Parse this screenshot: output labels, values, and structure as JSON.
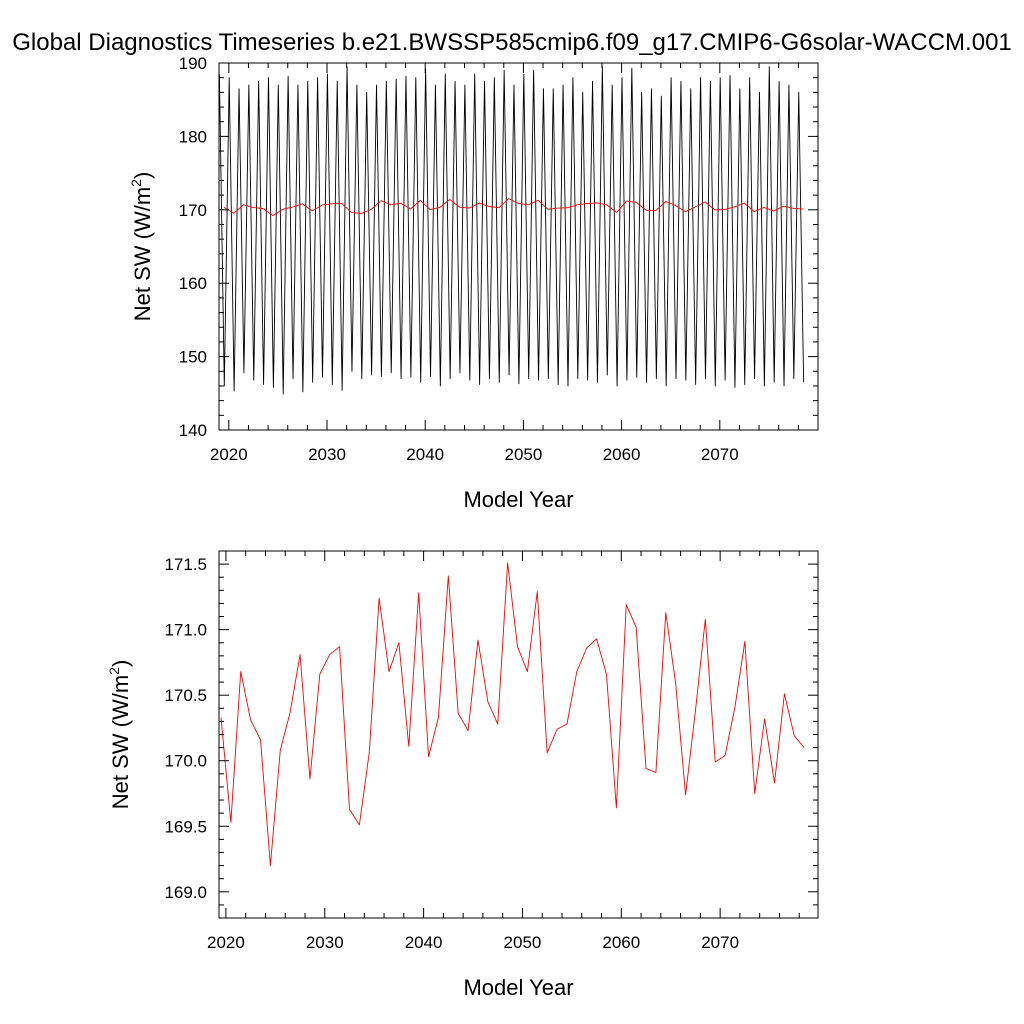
{
  "title": "Global Diagnostics Timeseries b.e21.BWSSP585cmip6.f09_g17.CMIP6-G6solar-WACCM.001",
  "colors": {
    "monthly": "#000000",
    "annual": "#ff0000"
  },
  "chart_data": [
    {
      "type": "line",
      "xlabel": "Model Year",
      "ylabel": "Net SW (W/m",
      "ylabel_superscript": "2",
      "ylabel_suffix": ")",
      "xlim": [
        2019,
        2080
      ],
      "ylim": [
        140,
        190
      ],
      "xticks": [
        2020,
        2030,
        2040,
        2050,
        2060,
        2070
      ],
      "xtick_labels": [
        "2020",
        "2030",
        "2040",
        "2050",
        "2060",
        "2070"
      ],
      "yticks": [
        140,
        150,
        160,
        170,
        180,
        190
      ],
      "ytick_labels": [
        "140",
        "150",
        "160",
        "170",
        "180",
        "190"
      ],
      "grid": false,
      "series": [
        {
          "color": "#000000",
          "x": [
            2019.04,
            2019.54,
            2020.04,
            2020.54,
            2021.04,
            2021.54,
            2022.04,
            2022.54,
            2023.04,
            2023.54,
            2024.04,
            2024.54,
            2025.04,
            2025.54,
            2026.04,
            2026.54,
            2027.04,
            2027.54,
            2028.04,
            2028.54,
            2029.04,
            2029.54,
            2030.04,
            2030.54,
            2031.04,
            2031.54,
            2032.04,
            2032.54,
            2033.04,
            2033.54,
            2034.04,
            2034.54,
            2035.04,
            2035.54,
            2036.04,
            2036.54,
            2037.04,
            2037.54,
            2038.04,
            2038.54,
            2039.04,
            2039.54,
            2040.04,
            2040.54,
            2041.04,
            2041.54,
            2042.04,
            2042.54,
            2043.04,
            2043.54,
            2044.04,
            2044.54,
            2045.04,
            2045.54,
            2046.04,
            2046.54,
            2047.04,
            2047.54,
            2048.04,
            2048.54,
            2049.04,
            2049.54,
            2050.04,
            2050.54,
            2051.04,
            2051.54,
            2052.04,
            2052.54,
            2053.04,
            2053.54,
            2054.04,
            2054.54,
            2055.04,
            2055.54,
            2056.04,
            2056.54,
            2057.04,
            2057.54,
            2058.04,
            2058.54,
            2059.04,
            2059.54,
            2060.04,
            2060.54,
            2061.04,
            2061.54,
            2062.04,
            2062.54,
            2063.04,
            2063.54,
            2064.04,
            2064.54,
            2065.04,
            2065.54,
            2066.04,
            2066.54,
            2067.04,
            2067.54,
            2068.04,
            2068.54,
            2069.04,
            2069.54,
            2070.04,
            2070.54,
            2071.04,
            2071.54,
            2072.04,
            2072.54,
            2073.04,
            2073.54,
            2074.04,
            2074.54,
            2075.04,
            2075.54,
            2076.04,
            2076.54,
            2077.04,
            2077.54,
            2078.04,
            2078.54
          ],
          "y": [
            188.5,
            146.0,
            188.0,
            145.3,
            186.5,
            147.8,
            187.0,
            146.8,
            187.5,
            146.2,
            188.0,
            145.8,
            187.0,
            144.9,
            188.2,
            147.0,
            187.0,
            145.2,
            187.5,
            146.5,
            188.0,
            147.2,
            188.5,
            146.2,
            187.5,
            145.4,
            189.5,
            148.0,
            187.0,
            147.0,
            186.0,
            147.5,
            187.0,
            147.3,
            187.5,
            147.8,
            187.8,
            147.0,
            188.2,
            147.2,
            188.0,
            146.5,
            189.2,
            147.3,
            187.0,
            146.0,
            188.5,
            147.0,
            187.5,
            147.8,
            187.0,
            146.8,
            188.5,
            146.2,
            187.5,
            147.0,
            188.0,
            146.5,
            189.0,
            147.5,
            187.0,
            146.3,
            188.5,
            147.0,
            189.0,
            146.8,
            186.5,
            147.0,
            186.5,
            146.2,
            187.0,
            146.0,
            188.0,
            147.0,
            186.0,
            146.8,
            187.5,
            146.5,
            189.5,
            147.5,
            187.0,
            146.0,
            188.0,
            146.8,
            189.3,
            147.2,
            186.0,
            146.5,
            186.5,
            147.0,
            185.5,
            146.0,
            188.0,
            147.0,
            187.5,
            146.8,
            186.5,
            146.2,
            188.0,
            147.0,
            187.5,
            146.0,
            188.0,
            146.8,
            188.3,
            145.8,
            186.5,
            146.2,
            188.0,
            147.0,
            186.0,
            146.0,
            189.5,
            146.5,
            187.5,
            146.0,
            187.0,
            147.0,
            186.0,
            146.5
          ]
        },
        {
          "color": "#ff0000",
          "x": [
            2019.5,
            2020.5,
            2021.5,
            2022.5,
            2023.5,
            2024.5,
            2025.5,
            2026.5,
            2027.5,
            2028.5,
            2029.5,
            2030.5,
            2031.5,
            2032.5,
            2033.5,
            2034.5,
            2035.5,
            2036.5,
            2037.5,
            2038.5,
            2039.5,
            2040.5,
            2041.5,
            2042.5,
            2043.5,
            2044.5,
            2045.5,
            2046.5,
            2047.5,
            2048.5,
            2049.5,
            2050.5,
            2051.5,
            2052.5,
            2053.5,
            2054.5,
            2055.5,
            2056.5,
            2057.5,
            2058.5,
            2059.5,
            2060.5,
            2061.5,
            2062.5,
            2063.5,
            2064.5,
            2065.5,
            2066.5,
            2067.5,
            2068.5,
            2069.5,
            2070.5,
            2071.5,
            2072.5,
            2073.5,
            2074.5,
            2075.5,
            2076.5,
            2077.5,
            2078.5
          ],
          "y": [
            170.33,
            169.53,
            170.68,
            170.31,
            170.16,
            169.2,
            170.08,
            170.37,
            170.81,
            169.86,
            170.66,
            170.81,
            170.87,
            169.63,
            169.51,
            170.06,
            171.24,
            170.68,
            170.9,
            170.11,
            171.28,
            170.03,
            170.33,
            171.41,
            170.36,
            170.23,
            170.92,
            170.45,
            170.28,
            171.51,
            170.87,
            170.68,
            171.29,
            170.06,
            170.24,
            170.28,
            170.68,
            170.86,
            170.93,
            170.66,
            169.64,
            171.19,
            171.02,
            169.94,
            169.91,
            171.13,
            170.59,
            169.74,
            170.38,
            171.08,
            169.99,
            170.04,
            170.41,
            170.91,
            169.75,
            170.32,
            169.83,
            170.51,
            170.19,
            170.1
          ]
        }
      ]
    },
    {
      "type": "line",
      "xlabel": "Model Year",
      "ylabel": "Net SW (W/m",
      "ylabel_superscript": "2",
      "ylabel_suffix": ")",
      "xlim": [
        2019.3,
        2079.9
      ],
      "ylim": [
        168.8,
        171.6
      ],
      "xticks": [
        2020,
        2030,
        2040,
        2050,
        2060,
        2070
      ],
      "xtick_labels": [
        "2020",
        "2030",
        "2040",
        "2050",
        "2060",
        "2070"
      ],
      "yticks": [
        169.0,
        169.5,
        170.0,
        170.5,
        171.0,
        171.5
      ],
      "ytick_labels": [
        "169.0",
        "169.5",
        "170.0",
        "170.5",
        "171.0",
        "171.5"
      ],
      "grid": false,
      "series": [
        {
          "color": "#ff0000",
          "x": [
            2019.5,
            2020.5,
            2021.5,
            2022.5,
            2023.5,
            2024.5,
            2025.5,
            2026.5,
            2027.5,
            2028.5,
            2029.5,
            2030.5,
            2031.5,
            2032.5,
            2033.5,
            2034.5,
            2035.5,
            2036.5,
            2037.5,
            2038.5,
            2039.5,
            2040.5,
            2041.5,
            2042.5,
            2043.5,
            2044.5,
            2045.5,
            2046.5,
            2047.5,
            2048.5,
            2049.5,
            2050.5,
            2051.5,
            2052.5,
            2053.5,
            2054.5,
            2055.5,
            2056.5,
            2057.5,
            2058.5,
            2059.5,
            2060.5,
            2061.5,
            2062.5,
            2063.5,
            2064.5,
            2065.5,
            2066.5,
            2067.5,
            2068.5,
            2069.5,
            2070.5,
            2071.5,
            2072.5,
            2073.5,
            2074.5,
            2075.5,
            2076.5,
            2077.5,
            2078.5
          ],
          "y": [
            170.33,
            169.53,
            170.68,
            170.31,
            170.16,
            169.2,
            170.08,
            170.37,
            170.81,
            169.86,
            170.66,
            170.81,
            170.87,
            169.63,
            169.51,
            170.06,
            171.24,
            170.68,
            170.9,
            170.11,
            171.28,
            170.03,
            170.33,
            171.41,
            170.36,
            170.23,
            170.92,
            170.45,
            170.28,
            171.51,
            170.87,
            170.68,
            171.29,
            170.06,
            170.24,
            170.28,
            170.68,
            170.86,
            170.93,
            170.66,
            169.64,
            171.19,
            171.02,
            169.94,
            169.91,
            171.13,
            170.59,
            169.74,
            170.38,
            171.08,
            169.99,
            170.04,
            170.41,
            170.91,
            169.75,
            170.32,
            169.83,
            170.51,
            170.19,
            170.1
          ]
        }
      ]
    }
  ]
}
